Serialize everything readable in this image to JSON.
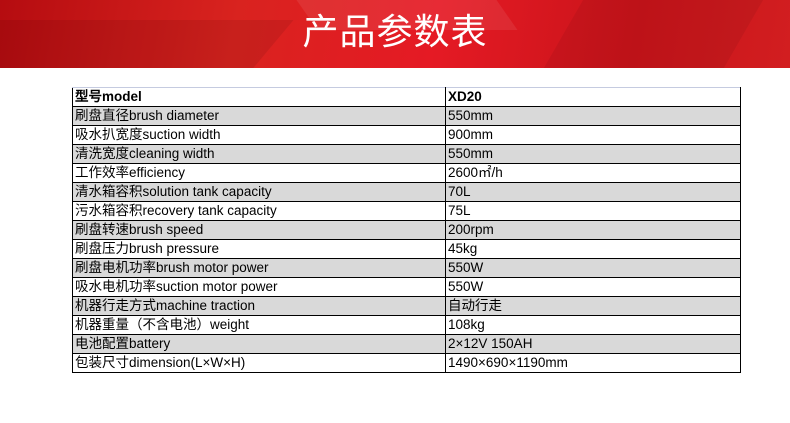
{
  "header": {
    "title": "产品参数表",
    "brand_color": "#e01b22"
  },
  "table": {
    "rows": [
      {
        "label": "型号model",
        "value": "XD20"
      },
      {
        "label": "刷盘直径brush diameter",
        "value": "550mm"
      },
      {
        "label": "吸水扒宽度suction width",
        "value": "900mm"
      },
      {
        "label": "清洗宽度cleaning width",
        "value": "550mm"
      },
      {
        "label": "工作效率efficiency",
        "value": "2600㎡/h"
      },
      {
        "label": "清水箱容积solution tank capacity",
        "value": "70L"
      },
      {
        "label": "污水箱容积recovery tank capacity",
        "value": "75L"
      },
      {
        "label": "刷盘转速brush speed",
        "value": "200rpm"
      },
      {
        "label": "刷盘压力brush pressure",
        "value": "45kg"
      },
      {
        "label": "刷盘电机功率brush motor power",
        "value": "550W"
      },
      {
        "label": "吸水电机功率suction motor power",
        "value": "550W"
      },
      {
        "label": "机器行走方式machine traction",
        "value": "自动行走"
      },
      {
        "label": "机器重量（不含电池）weight",
        "value": "108kg"
      },
      {
        "label": "电池配置battery",
        "value": "2×12V 150AH"
      },
      {
        "label": "包装尺寸dimension(L×W×H)",
        "value": "1490×690×1190mm"
      }
    ]
  }
}
